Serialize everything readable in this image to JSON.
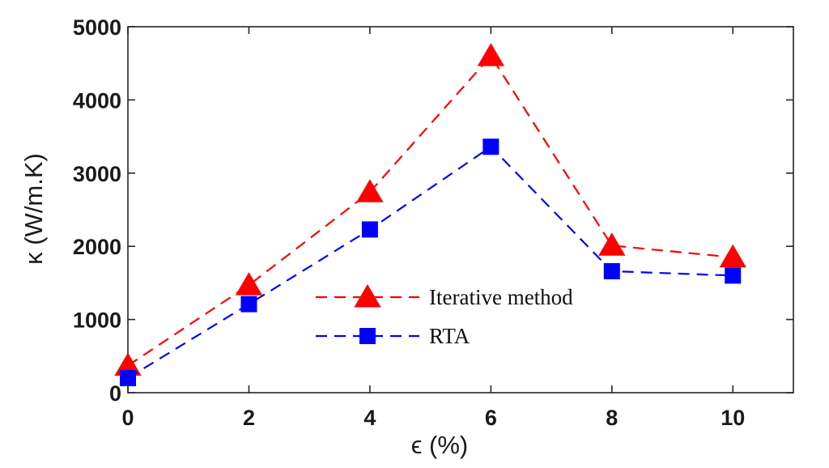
{
  "chart_data": {
    "type": "line",
    "xlabel": "ϵ (%)",
    "ylabel": "κ (W/m.K)",
    "x": [
      0,
      2,
      4,
      6,
      8,
      10
    ],
    "xlim": [
      0,
      11
    ],
    "ylim": [
      0,
      5000
    ],
    "xticks": [
      0,
      2,
      4,
      6,
      8,
      10
    ],
    "yticks": [
      0,
      1000,
      2000,
      3000,
      4000,
      5000
    ],
    "grid": false,
    "legend_position": "center",
    "series": [
      {
        "name": "Iterative method",
        "values": [
          370,
          1470,
          2740,
          4600,
          2010,
          1850
        ],
        "color": "#ff0000",
        "marker": "triangle",
        "line_style": "dashed"
      },
      {
        "name": "RTA",
        "values": [
          200,
          1210,
          2230,
          3360,
          1660,
          1600
        ],
        "color": "#0000ff",
        "marker": "square",
        "line_style": "dashed"
      }
    ]
  }
}
